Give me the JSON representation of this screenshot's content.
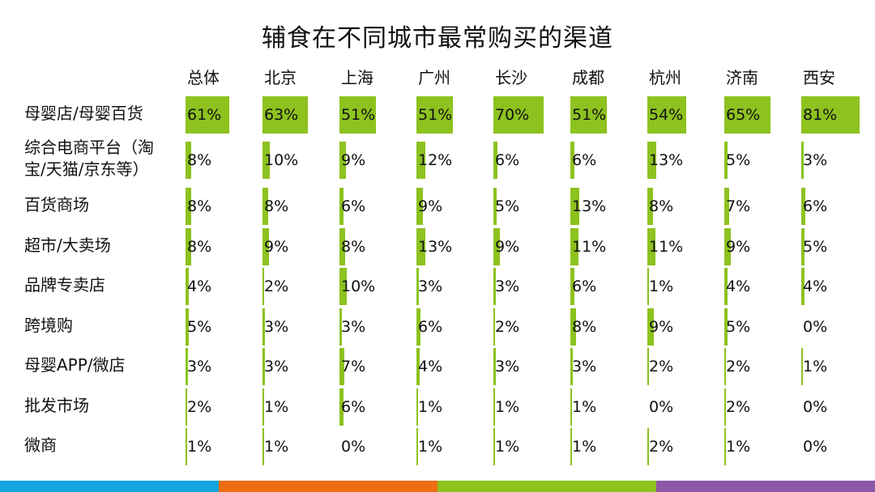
{
  "title": "辅食在不同城市最常购买的渠道",
  "colors": {
    "bar": "#8dc21f",
    "strip": [
      "#13a6e0",
      "#ee6c14",
      "#8dc21f",
      "#8e58a6"
    ]
  },
  "chart_data": {
    "type": "table",
    "title": "辅食在不同城市最常购买的渠道",
    "unit": "%",
    "columns": [
      "总体",
      "北京",
      "上海",
      "广州",
      "长沙",
      "成都",
      "杭州",
      "济南",
      "西安"
    ],
    "rows": [
      {
        "label": "母婴店/母婴百货",
        "values": [
          61,
          63,
          51,
          51,
          70,
          51,
          54,
          65,
          81
        ]
      },
      {
        "label": "综合电商平台（淘宝/天猫/京东等）",
        "values": [
          8,
          10,
          9,
          12,
          6,
          6,
          13,
          5,
          3
        ]
      },
      {
        "label": "百货商场",
        "values": [
          8,
          8,
          6,
          9,
          5,
          13,
          8,
          7,
          6
        ]
      },
      {
        "label": "超市/大卖场",
        "values": [
          8,
          9,
          8,
          13,
          9,
          11,
          11,
          9,
          5
        ]
      },
      {
        "label": "品牌专卖店",
        "values": [
          4,
          2,
          10,
          3,
          3,
          6,
          1,
          4,
          4
        ]
      },
      {
        "label": "跨境购",
        "values": [
          5,
          3,
          3,
          6,
          2,
          8,
          9,
          5,
          0
        ]
      },
      {
        "label": "母婴APP/微店",
        "values": [
          3,
          3,
          7,
          4,
          3,
          3,
          2,
          2,
          1
        ]
      },
      {
        "label": "批发市场",
        "values": [
          2,
          1,
          6,
          1,
          1,
          1,
          0,
          2,
          0
        ]
      },
      {
        "label": "微商",
        "values": [
          1,
          1,
          0,
          1,
          1,
          1,
          2,
          1,
          0
        ]
      }
    ],
    "label_lines": {
      "综合电商平台（淘宝/天猫/京东等）": [
        "综合电商平台（淘",
        "宝/天猫/京东等）"
      ]
    }
  }
}
